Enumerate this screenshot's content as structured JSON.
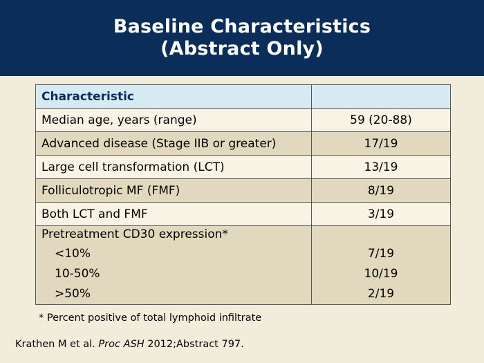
{
  "title": {
    "line1": "Baseline Characteristics",
    "line2": "(Abstract Only)"
  },
  "table": {
    "header": {
      "characteristic": "Characteristic",
      "value": ""
    },
    "rows": [
      {
        "label": "Median age, years (range)",
        "value": "59 (20-88)"
      },
      {
        "label": "Advanced disease (Stage IIB or greater)",
        "value": "17/19"
      },
      {
        "label": "Large cell transformation (LCT)",
        "value": "13/19"
      },
      {
        "label": "Folliculotropic MF (FMF)",
        "value": "8/19"
      },
      {
        "label": "Both LCT and FMF",
        "value": "3/19"
      }
    ],
    "cd30": {
      "label": "Pretreatment CD30 expression*",
      "items": [
        {
          "label": "<10%",
          "value": "7/19"
        },
        {
          "label": "10-50%",
          "value": "10/19"
        },
        {
          "label": ">50%",
          "value": "2/19"
        }
      ]
    }
  },
  "footnote": "* Percent positive of total lymphoid infiltrate",
  "citation": {
    "authors": "Krathen M et al. ",
    "journal": "Proc ASH",
    "rest": " 2012;Abstract 797."
  }
}
